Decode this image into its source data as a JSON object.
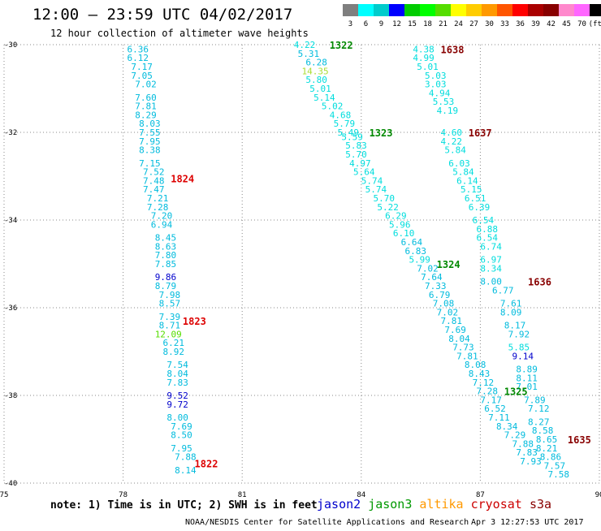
{
  "header": {
    "title": "12:00 – 23:59 UTC 04/02/2017",
    "subtitle": "12 hour collection of altimeter wave heights"
  },
  "legend": {
    "labels": [
      "3",
      "6",
      "9",
      "12",
      "15",
      "18",
      "21",
      "24",
      "27",
      "30",
      "33",
      "36",
      "39",
      "42",
      "45",
      "70",
      "(ft)"
    ],
    "colors": [
      "#7f7f7f",
      "#00ffff",
      "#00cccc",
      "#0000ff",
      "#00cc00",
      "#00ff00",
      "#55dd00",
      "#ffff00",
      "#ffcc00",
      "#ff9900",
      "#ff5500",
      "#ff0000",
      "#aa0000",
      "#880000",
      "#ff88cc",
      "#ff66ff",
      "#000000"
    ]
  },
  "footer": {
    "note": "note: 1) Time is in UTC; 2) SWH is in feet",
    "satellites": [
      {
        "name": "jason2",
        "color": "#0000cc"
      },
      {
        "name": "jason3",
        "color": "#009900"
      },
      {
        "name": "altika",
        "color": "#ff9900"
      },
      {
        "name": "cryosat",
        "color": "#cc0000"
      },
      {
        "name": "s3a",
        "color": "#880000"
      }
    ],
    "credit": "NOAA/NESDIS Center for Satellite Applications and Research",
    "timestamp": "Apr  3 12:27:53 UTC 2017"
  },
  "chart_data": {
    "type": "scatter",
    "title": "12 hour collection of altimeter wave heights",
    "xlim": [
      75,
      90
    ],
    "ylim": [
      -40,
      -30
    ],
    "x_ticks": [
      "75",
      "78",
      "81",
      "84",
      "87",
      "90"
    ],
    "y_ticks": [
      "-30",
      "-32",
      "-34",
      "-36",
      "-38",
      "-40"
    ],
    "grid": true,
    "tracks": [
      {
        "label": "1824",
        "label_color": "#dd0000",
        "label_pos": [
          79.2,
          -33.05
        ],
        "points": [
          [
            78.1,
            -30.1,
            "6.36",
            "#00bbdd"
          ],
          [
            78.1,
            -30.3,
            "6.12",
            "#00bbdd"
          ],
          [
            78.2,
            -30.5,
            "7.17",
            "#00bbdd"
          ],
          [
            78.2,
            -30.7,
            "7.05",
            "#00bbdd"
          ],
          [
            78.3,
            -30.9,
            "7.02",
            "#00bbdd"
          ],
          [
            78.3,
            -31.2,
            "7.60",
            "#00bbdd"
          ],
          [
            78.3,
            -31.4,
            "7.81",
            "#00bbdd"
          ],
          [
            78.3,
            -31.6,
            "8.29",
            "#00bbdd"
          ],
          [
            78.4,
            -31.8,
            "8.03",
            "#00bbdd"
          ],
          [
            78.4,
            -32.0,
            "7.55",
            "#00bbdd"
          ],
          [
            78.4,
            -32.2,
            "7.95",
            "#00bbdd"
          ],
          [
            78.4,
            -32.4,
            "8.38",
            "#00bbdd"
          ],
          [
            78.4,
            -32.7,
            "7.15",
            "#00bbdd"
          ],
          [
            78.5,
            -32.9,
            "7.52",
            "#00bbdd"
          ],
          [
            78.5,
            -33.1,
            "7.48",
            "#00bbdd"
          ],
          [
            78.5,
            -33.3,
            "7.47",
            "#00bbdd"
          ],
          [
            78.6,
            -33.5,
            "7.21",
            "#00bbdd"
          ],
          [
            78.6,
            -33.7,
            "7.28",
            "#00bbdd"
          ],
          [
            78.7,
            -33.9,
            "7.20",
            "#00bbdd"
          ],
          [
            78.7,
            -34.1,
            "6.94",
            "#00bbdd"
          ],
          [
            78.8,
            -34.4,
            "8.45",
            "#00bbdd"
          ],
          [
            78.8,
            -34.6,
            "8.63",
            "#00bbdd"
          ],
          [
            78.8,
            -34.8,
            "7.80",
            "#00bbdd"
          ],
          [
            78.8,
            -35.0,
            "7.85",
            "#00bbdd"
          ],
          [
            78.8,
            -35.3,
            "9.86",
            "#0000cc"
          ],
          [
            78.8,
            -35.5,
            "8.79",
            "#00bbdd"
          ],
          [
            78.9,
            -35.7,
            "7.98",
            "#00bbdd"
          ],
          [
            78.9,
            -35.9,
            "8.57",
            "#00bbdd"
          ],
          [
            78.9,
            -36.2,
            "7.39",
            "#00bbdd"
          ],
          [
            78.9,
            -36.4,
            "8.71",
            "#00bbdd"
          ],
          [
            78.8,
            -36.6,
            "12.09",
            "#55dd00"
          ],
          [
            79.0,
            -36.8,
            "6.21",
            "#00bbdd"
          ],
          [
            79.0,
            -37.0,
            "8.92",
            "#00bbdd"
          ],
          [
            79.1,
            -37.3,
            "7.54",
            "#00bbdd"
          ],
          [
            79.1,
            -37.5,
            "8.04",
            "#00bbdd"
          ],
          [
            79.1,
            -37.7,
            "7.83",
            "#00bbdd"
          ],
          [
            79.1,
            -38.0,
            "9.52",
            "#0000cc"
          ],
          [
            79.1,
            -38.2,
            "9.72",
            "#0000cc"
          ],
          [
            79.1,
            -38.5,
            "8.00",
            "#00bbdd"
          ],
          [
            79.2,
            -38.7,
            "7.69",
            "#00bbdd"
          ],
          [
            79.2,
            -38.9,
            "8.50",
            "#00bbdd"
          ],
          [
            79.2,
            -39.2,
            "7.95",
            "#00bbdd"
          ],
          [
            79.3,
            -39.4,
            "7.88",
            "#00bbdd"
          ],
          [
            79.3,
            -39.7,
            "8.14",
            "#00bbdd"
          ]
        ]
      },
      {
        "label": "1823",
        "label_color": "#dd0000",
        "label_pos": [
          79.5,
          -36.3
        ],
        "points": []
      },
      {
        "label": "1822",
        "label_color": "#dd0000",
        "label_pos": [
          79.8,
          -39.55
        ],
        "points": []
      },
      {
        "label": "1322",
        "label_color": "#008800",
        "label_pos": [
          83.2,
          -30.0
        ],
        "points": [
          [
            82.3,
            -30.0,
            "4.22",
            "#00dddd"
          ],
          [
            82.4,
            -30.2,
            "5.31",
            "#00bbdd"
          ],
          [
            82.6,
            -30.4,
            "6.28",
            "#00bbdd"
          ],
          [
            82.5,
            -30.6,
            "14.35",
            "#aadd33"
          ],
          [
            82.6,
            -30.8,
            "5.80",
            "#00dddd"
          ],
          [
            82.7,
            -31.0,
            "5.01",
            "#00dddd"
          ],
          [
            82.8,
            -31.2,
            "5.14",
            "#00dddd"
          ],
          [
            83.0,
            -31.4,
            "5.02",
            "#00dddd"
          ],
          [
            83.2,
            -31.6,
            "4.68",
            "#00dddd"
          ],
          [
            83.3,
            -31.8,
            "5.79",
            "#00dddd"
          ],
          [
            83.4,
            -32.0,
            "5.49",
            "#00dddd"
          ]
        ]
      },
      {
        "label": "1323",
        "label_color": "#008800",
        "label_pos": [
          84.2,
          -32.0
        ],
        "points": [
          [
            83.5,
            -32.1,
            "5.59",
            "#00dddd"
          ],
          [
            83.6,
            -32.3,
            "5.83",
            "#00dddd"
          ],
          [
            83.6,
            -32.5,
            "5.70",
            "#00dddd"
          ],
          [
            83.7,
            -32.7,
            "4.97",
            "#00dddd"
          ],
          [
            83.8,
            -32.9,
            "5.64",
            "#00dddd"
          ],
          [
            84.0,
            -33.1,
            "5.74",
            "#00dddd"
          ],
          [
            84.1,
            -33.3,
            "5.74",
            "#00dddd"
          ],
          [
            84.3,
            -33.5,
            "5.70",
            "#00dddd"
          ],
          [
            84.4,
            -33.7,
            "5.22",
            "#00dddd"
          ],
          [
            84.6,
            -33.9,
            "6.29",
            "#00dddd"
          ],
          [
            84.7,
            -34.1,
            "5.96",
            "#00dddd"
          ],
          [
            84.8,
            -34.3,
            "6.10",
            "#00dddd"
          ],
          [
            85.0,
            -34.5,
            "6.64",
            "#00bbdd"
          ],
          [
            85.1,
            -34.7,
            "6.83",
            "#00bbdd"
          ],
          [
            85.2,
            -34.9,
            "5.99",
            "#00dddd"
          ]
        ]
      },
      {
        "label": "1324",
        "label_color": "#008800",
        "label_pos": [
          85.9,
          -35.0
        ],
        "points": [
          [
            85.4,
            -35.1,
            "7.02",
            "#00bbdd"
          ],
          [
            85.5,
            -35.3,
            "7.64",
            "#00bbdd"
          ],
          [
            85.6,
            -35.5,
            "7.33",
            "#00bbdd"
          ],
          [
            85.7,
            -35.7,
            "6.79",
            "#00bbdd"
          ],
          [
            85.8,
            -35.9,
            "7.08",
            "#00bbdd"
          ],
          [
            85.9,
            -36.1,
            "7.02",
            "#00bbdd"
          ],
          [
            86.0,
            -36.3,
            "7.81",
            "#00bbdd"
          ],
          [
            86.1,
            -36.5,
            "7.69",
            "#00bbdd"
          ],
          [
            86.2,
            -36.7,
            "8.04",
            "#00bbdd"
          ],
          [
            86.3,
            -36.9,
            "7.73",
            "#00bbdd"
          ],
          [
            86.4,
            -37.1,
            "7.81",
            "#00bbdd"
          ],
          [
            86.6,
            -37.3,
            "8.08",
            "#00bbdd"
          ],
          [
            86.7,
            -37.5,
            "8.43",
            "#00bbdd"
          ],
          [
            86.8,
            -37.7,
            "7.12",
            "#00bbdd"
          ],
          [
            86.9,
            -37.9,
            "7.28",
            "#00bbdd"
          ],
          [
            87.0,
            -38.1,
            "7.17",
            "#00bbdd"
          ],
          [
            87.1,
            -38.3,
            "6.52",
            "#00bbdd"
          ],
          [
            87.2,
            -38.5,
            "7.11",
            "#00bbdd"
          ],
          [
            87.4,
            -38.7,
            "8.34",
            "#00bbdd"
          ],
          [
            87.6,
            -38.9,
            "7.29",
            "#00bbdd"
          ],
          [
            87.8,
            -39.1,
            "7.88",
            "#00bbdd"
          ],
          [
            87.9,
            -39.3,
            "7.83",
            "#00bbdd"
          ],
          [
            88.0,
            -39.5,
            "7.93",
            "#00bbdd"
          ]
        ]
      },
      {
        "label": "1325",
        "label_color": "#008800",
        "label_pos": [
          87.6,
          -37.9
        ],
        "points": []
      },
      {
        "label": "1638",
        "label_color": "#880000",
        "label_pos": [
          86.0,
          -30.1
        ],
        "points": [
          [
            85.3,
            -30.1,
            "4.38",
            "#00dddd"
          ],
          [
            85.3,
            -30.3,
            "4.99",
            "#00dddd"
          ],
          [
            85.4,
            -30.5,
            "5.01",
            "#00dddd"
          ],
          [
            85.6,
            -30.7,
            "5.03",
            "#00dddd"
          ],
          [
            85.6,
            -30.9,
            "3.03",
            "#00dddd"
          ],
          [
            85.7,
            -31.1,
            "4.94",
            "#00dddd"
          ],
          [
            85.8,
            -31.3,
            "5.53",
            "#00dddd"
          ],
          [
            85.9,
            -31.5,
            "4.19",
            "#00dddd"
          ]
        ]
      },
      {
        "label": "1637",
        "label_color": "#880000",
        "label_pos": [
          86.7,
          -32.0
        ],
        "points": [
          [
            86.0,
            -32.0,
            "4.60",
            "#00dddd"
          ],
          [
            86.0,
            -32.2,
            "4.22",
            "#00dddd"
          ],
          [
            86.1,
            -32.4,
            "5.84",
            "#00dddd"
          ],
          [
            86.2,
            -32.7,
            "6.03",
            "#00dddd"
          ],
          [
            86.3,
            -32.9,
            "5.84",
            "#00dddd"
          ],
          [
            86.4,
            -33.1,
            "6.14",
            "#00dddd"
          ],
          [
            86.5,
            -33.3,
            "5.15",
            "#00dddd"
          ],
          [
            86.6,
            -33.5,
            "6.51",
            "#00dddd"
          ],
          [
            86.7,
            -33.7,
            "6.39",
            "#00dddd"
          ],
          [
            86.8,
            -34.0,
            "6.54",
            "#00dddd"
          ],
          [
            86.9,
            -34.2,
            "6.88",
            "#00dddd"
          ],
          [
            86.9,
            -34.4,
            "6.54",
            "#00dddd"
          ],
          [
            87.0,
            -34.6,
            "6.74",
            "#00dddd"
          ],
          [
            87.0,
            -34.9,
            "6.97",
            "#00dddd"
          ],
          [
            87.0,
            -35.1,
            "8.34",
            "#00dddd"
          ],
          [
            87.0,
            -35.4,
            "8.00",
            "#00bbdd"
          ],
          [
            87.3,
            -35.6,
            "6.77",
            "#00bbdd"
          ],
          [
            87.5,
            -35.9,
            "7.61",
            "#00bbdd"
          ],
          [
            87.5,
            -36.1,
            "8.09",
            "#00bbdd"
          ],
          [
            87.6,
            -36.4,
            "8.17",
            "#00bbdd"
          ],
          [
            87.7,
            -36.6,
            "7.92",
            "#00bbdd"
          ],
          [
            87.7,
            -36.9,
            "5.85",
            "#00dddd"
          ],
          [
            87.8,
            -37.1,
            "9.14",
            "#0000cc"
          ],
          [
            87.9,
            -37.4,
            "8.89",
            "#00bbdd"
          ]
        ]
      },
      {
        "label": "1636",
        "label_color": "#880000",
        "label_pos": [
          88.2,
          -35.4
        ],
        "points": [
          [
            87.9,
            -37.6,
            "8.11",
            "#00bbdd"
          ],
          [
            87.9,
            -37.8,
            "7.01",
            "#00bbdd"
          ],
          [
            88.1,
            -38.1,
            "7.89",
            "#00bbdd"
          ],
          [
            88.2,
            -38.3,
            "7.12",
            "#00bbdd"
          ],
          [
            88.2,
            -38.6,
            "8.27",
            "#00bbdd"
          ],
          [
            88.3,
            -38.8,
            "8.58",
            "#00bbdd"
          ],
          [
            88.4,
            -39.0,
            "8.65",
            "#00bbdd"
          ],
          [
            88.4,
            -39.2,
            "8.21",
            "#00bbdd"
          ],
          [
            88.5,
            -39.4,
            "8.86",
            "#00bbdd"
          ],
          [
            88.6,
            -39.6,
            "7.57",
            "#00bbdd"
          ],
          [
            88.7,
            -39.8,
            "7.58",
            "#00bbdd"
          ]
        ]
      },
      {
        "label": "1635",
        "label_color": "#880000",
        "label_pos": [
          89.2,
          -39.0
        ],
        "points": []
      }
    ]
  }
}
